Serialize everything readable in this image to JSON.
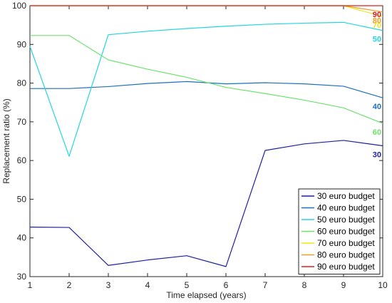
{
  "chart_data": {
    "type": "line",
    "xlabel": "Time elapsed (years)",
    "ylabel": "Replacement ratio (%)",
    "xlim": [
      1,
      10
    ],
    "ylim": [
      30,
      100
    ],
    "x": [
      1,
      2,
      3,
      4,
      5,
      6,
      7,
      8,
      9,
      10
    ],
    "xticks": [
      "1",
      "2",
      "3",
      "4",
      "5",
      "6",
      "7",
      "8",
      "9",
      "10"
    ],
    "yticks": [
      "30",
      "40",
      "50",
      "60",
      "70",
      "80",
      "90",
      "100"
    ],
    "grid": false,
    "legend_position": "bottom-right",
    "series": [
      {
        "name": "30 euro budget",
        "color": "#1f1fa3",
        "end_label": "30",
        "values": [
          42.8,
          42.7,
          32.9,
          34.3,
          35.4,
          32.6,
          62.6,
          64.3,
          65.2,
          63.8
        ]
      },
      {
        "name": "40 euro budget",
        "color": "#1f6fbf",
        "end_label": "40",
        "values": [
          78.6,
          78.6,
          79.1,
          79.9,
          80.4,
          79.8,
          80.1,
          79.8,
          79.2,
          76.2
        ]
      },
      {
        "name": "50 euro budget",
        "color": "#22d6e0",
        "end_label": "50",
        "values": [
          89.5,
          61.1,
          92.5,
          93.4,
          94.1,
          94.7,
          95.2,
          95.5,
          95.7,
          93.6
        ]
      },
      {
        "name": "60 euro budget",
        "color": "#6ee26e",
        "end_label": "60",
        "values": [
          92.3,
          92.3,
          86.0,
          83.6,
          81.5,
          78.9,
          77.3,
          75.6,
          73.6,
          69.6
        ]
      },
      {
        "name": "70 euro budget",
        "color": "#f2e21c",
        "end_label": "70",
        "values": [
          100,
          100,
          100,
          100,
          100,
          100,
          100,
          100,
          100,
          97.2
        ]
      },
      {
        "name": "80 euro budget",
        "color": "#f0a020",
        "end_label": "80",
        "values": [
          100,
          100,
          100,
          100,
          100,
          100,
          100,
          100,
          100,
          98.4
        ]
      },
      {
        "name": "90 euro budget",
        "color": "#d62020",
        "end_label": "90",
        "values": [
          100,
          100,
          100,
          100,
          100,
          100,
          100,
          100,
          100,
          100
        ]
      }
    ]
  }
}
